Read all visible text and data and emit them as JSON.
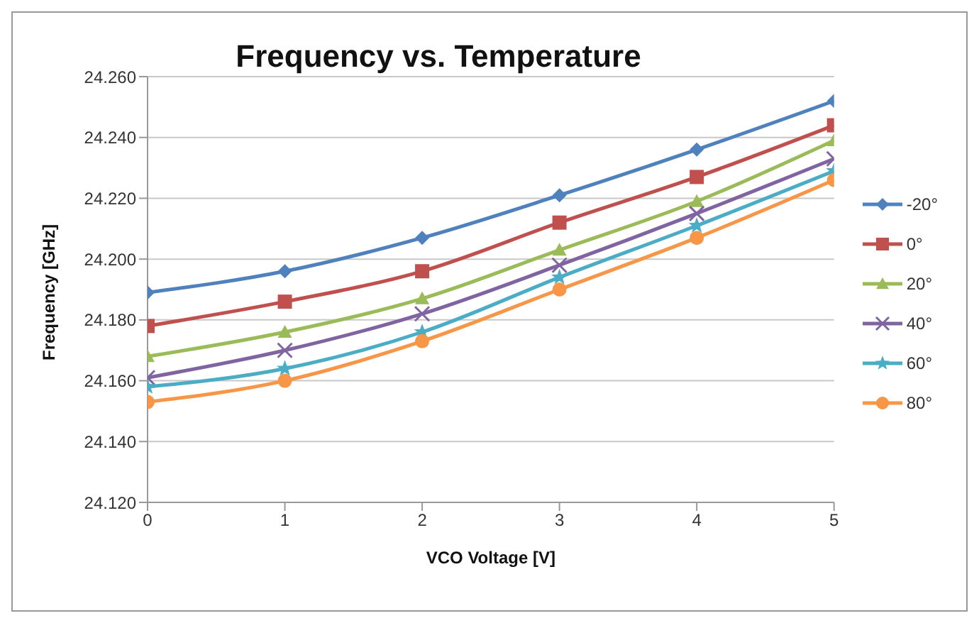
{
  "chart_data": {
    "type": "line",
    "title": "Frequency vs. Temperature",
    "xlabel": "VCO Voltage [V]",
    "ylabel": "Frequency [GHz]",
    "x": [
      0,
      1,
      2,
      3,
      4,
      5
    ],
    "xlim": [
      0,
      5
    ],
    "xticks": [
      0,
      1,
      2,
      3,
      4,
      5
    ],
    "ylim": [
      24.12,
      24.26
    ],
    "yticks": [
      {
        "value": 24.12,
        "label": "24.120"
      },
      {
        "value": 24.14,
        "label": "24.140"
      },
      {
        "value": 24.16,
        "label": "24.160"
      },
      {
        "value": 24.18,
        "label": "24.180"
      },
      {
        "value": 24.2,
        "label": "24.200"
      },
      {
        "value": 24.22,
        "label": "24.220"
      },
      {
        "value": 24.24,
        "label": "24.240"
      },
      {
        "value": 24.26,
        "label": "24.260"
      }
    ],
    "grid": "y",
    "legend": "right",
    "series": [
      {
        "name": "-20°",
        "color": "#4f81bd",
        "marker": "diamond",
        "values": [
          24.189,
          24.196,
          24.207,
          24.221,
          24.236,
          24.252
        ]
      },
      {
        "name": "0°",
        "color": "#c0504d",
        "marker": "square",
        "values": [
          24.178,
          24.186,
          24.196,
          24.212,
          24.227,
          24.244
        ]
      },
      {
        "name": "20°",
        "color": "#9bbb59",
        "marker": "triangle",
        "values": [
          24.168,
          24.176,
          24.187,
          24.203,
          24.219,
          24.239
        ]
      },
      {
        "name": "40°",
        "color": "#8064a2",
        "marker": "cross",
        "values": [
          24.161,
          24.17,
          24.182,
          24.198,
          24.215,
          24.233
        ]
      },
      {
        "name": "60°",
        "color": "#4bacc6",
        "marker": "star",
        "values": [
          24.158,
          24.164,
          24.176,
          24.194,
          24.211,
          24.229
        ]
      },
      {
        "name": "80°",
        "color": "#f79646",
        "marker": "circle",
        "values": [
          24.153,
          24.16,
          24.173,
          24.19,
          24.207,
          24.226
        ]
      }
    ]
  }
}
